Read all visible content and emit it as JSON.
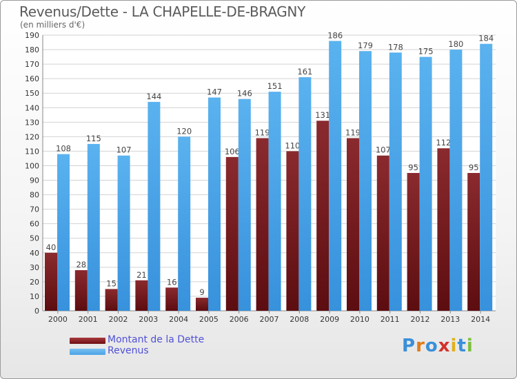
{
  "title": "Revenus/Dette - LA CHAPELLE-DE-BRAGNY",
  "subtitle": "(en milliers d'€)",
  "chart_data": {
    "type": "bar",
    "categories": [
      "2000",
      "2001",
      "2002",
      "2003",
      "2004",
      "2005",
      "2006",
      "2007",
      "2008",
      "2009",
      "2010",
      "2011",
      "2012",
      "2013",
      "2014"
    ],
    "series": [
      {
        "name": "Montant de la Dette",
        "color": "#7a1c20",
        "values": [
          40,
          28,
          15,
          21,
          16,
          9,
          106,
          119,
          110,
          131,
          119,
          107,
          95,
          112,
          95
        ]
      },
      {
        "name": "Revenus",
        "color": "#4aa3e6",
        "values": [
          108,
          115,
          107,
          144,
          120,
          147,
          146,
          151,
          161,
          186,
          179,
          178,
          175,
          180,
          184
        ]
      }
    ],
    "ylim": [
      0,
      190
    ],
    "ytick_step": 10,
    "grid": true,
    "legend_position": "bottom-left"
  },
  "legend": {
    "items": [
      {
        "label": "Montant de la Dette",
        "color": "#6e0f14"
      },
      {
        "label": "Revenus",
        "color": "#4aa3e6"
      }
    ]
  },
  "logo": {
    "letters": [
      "P",
      "r",
      "o",
      "x",
      "i",
      "t",
      "i"
    ],
    "colors": [
      "#3a8fd8",
      "#e07b1a",
      "#3a8fd8",
      "#d4302a",
      "#e0b21a",
      "#3a8fd8",
      "#7bbf3a"
    ]
  }
}
